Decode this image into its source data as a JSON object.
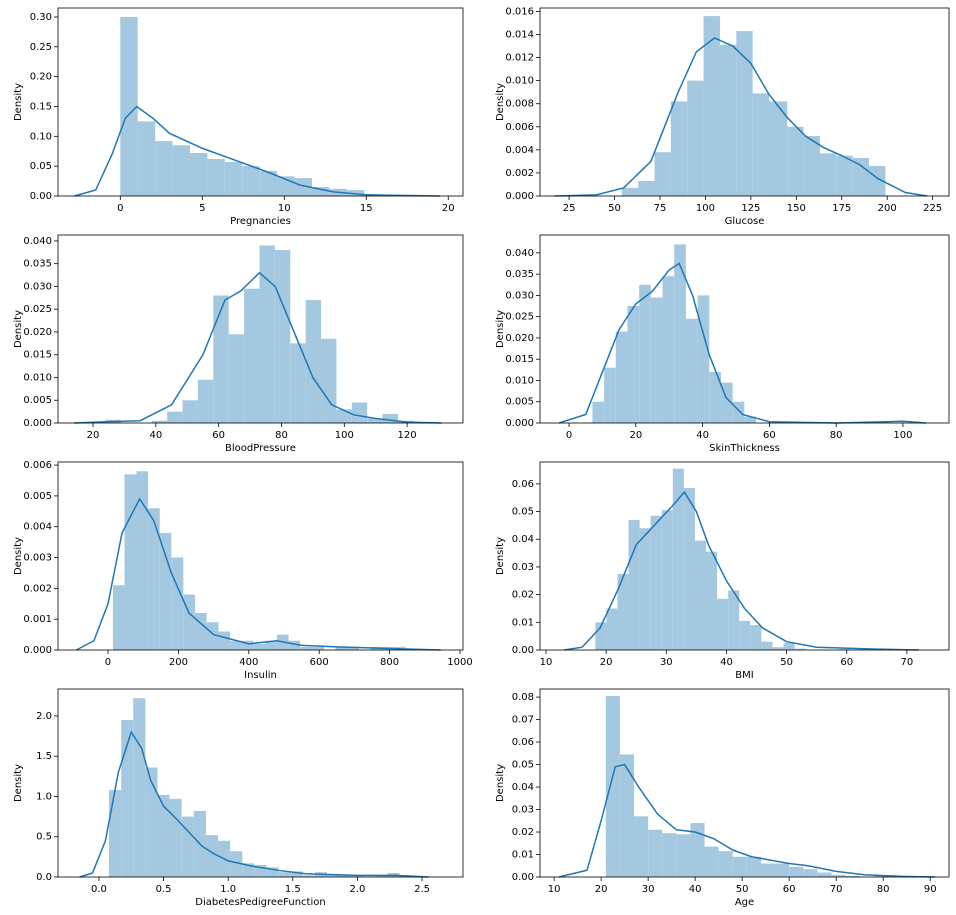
{
  "chart_data": [
    {
      "type": "histogram",
      "xlabel": "Pregnancies",
      "ylabel": "Density",
      "color": "#a5c8e1",
      "bins": [
        0,
        1.0625,
        2.125,
        3.1875,
        4.25,
        5.3125,
        6.375,
        7.4375,
        8.5,
        9.5625,
        10.625,
        11.6875,
        12.75,
        13.8125,
        14.875,
        15.9375,
        17
      ],
      "values": [
        0.3,
        0.125,
        0.092,
        0.085,
        0.072,
        0.062,
        0.057,
        0.05,
        0.042,
        0.033,
        0.03,
        0.015,
        0.012,
        0.01,
        0.002,
        0.002
      ],
      "kde": {
        "color": "#1f77b4",
        "x": [
          -2.8,
          -1.5,
          -0.5,
          0.3,
          1,
          2,
          3,
          5,
          7,
          9,
          11,
          13,
          15,
          17,
          19.5
        ],
        "y": [
          0,
          0.01,
          0.07,
          0.13,
          0.15,
          0.13,
          0.105,
          0.08,
          0.06,
          0.04,
          0.018,
          0.007,
          0.002,
          0.001,
          0
        ]
      },
      "xlim": [
        -3.8,
        20.9
      ],
      "ylim": [
        0,
        0.315
      ],
      "xticks": [
        0,
        5,
        10,
        15,
        20
      ],
      "yticks": [
        {
          "value": 0,
          "label": "0.00"
        },
        0.05,
        {
          "value": 0.1,
          "label": "0.10"
        },
        0.15,
        {
          "value": 0.2,
          "label": "0.20"
        },
        0.25,
        {
          "value": 0.3,
          "label": "0.30"
        }
      ]
    },
    {
      "type": "histogram",
      "xlabel": "Glucose",
      "ylabel": "Density",
      "color": "#a5c8e1",
      "bins": [
        54,
        63,
        72,
        81,
        90,
        99,
        108,
        117,
        126,
        135,
        145,
        154,
        163,
        172,
        181,
        190,
        199
      ],
      "values": [
        0.0007,
        0.0013,
        0.0038,
        0.0082,
        0.01,
        0.0156,
        0.0131,
        0.0143,
        0.0089,
        0.0082,
        0.006,
        0.0052,
        0.0037,
        0.0035,
        0.0033,
        0.0026
      ],
      "kde": {
        "color": "#1f77b4",
        "x": [
          17,
          40,
          55,
          70,
          85,
          95,
          105,
          115,
          125,
          135,
          145,
          155,
          165,
          175,
          185,
          195,
          210,
          222
        ],
        "y": [
          0,
          0.0001,
          0.0007,
          0.003,
          0.009,
          0.0125,
          0.0137,
          0.013,
          0.0115,
          0.0088,
          0.0068,
          0.0052,
          0.0042,
          0.0035,
          0.0027,
          0.0015,
          0.0003,
          0
        ]
      },
      "xlim": [
        9,
        234
      ],
      "ylim": [
        0,
        0.0163
      ],
      "xticks": [
        25,
        50,
        75,
        100,
        125,
        150,
        175,
        200,
        225
      ],
      "yticks": [
        {
          "value": 0,
          "label": "0.000"
        },
        0.002,
        0.004,
        0.006,
        0.008,
        {
          "value": 0.01,
          "label": "0.010"
        },
        0.012,
        0.014,
        0.016
      ]
    },
    {
      "type": "histogram",
      "xlabel": "BloodPressure",
      "ylabel": "Density",
      "color": "#a5c8e1",
      "bins": [
        24,
        28.9,
        33.8,
        38.7,
        43.6,
        48.5,
        53.4,
        58.3,
        63.2,
        68.1,
        73,
        77.9,
        82.8,
        87.7,
        92.6,
        97.5,
        102.4,
        107.3,
        112.2,
        117.1,
        122
      ],
      "values": [
        0.0007,
        0,
        0,
        0.0005,
        0.0025,
        0.005,
        0.0095,
        0.028,
        0.0195,
        0.0295,
        0.039,
        0.038,
        0.0175,
        0.027,
        0.0185,
        0.003,
        0.0045,
        0.001,
        0.002,
        0.0005
      ],
      "kde": {
        "color": "#1f77b4",
        "x": [
          14,
          25,
          35,
          45,
          55,
          62,
          67,
          73,
          78,
          84,
          90,
          96,
          103,
          110,
          120,
          131
        ],
        "y": [
          0,
          0.0003,
          0.0005,
          0.004,
          0.015,
          0.027,
          0.029,
          0.033,
          0.03,
          0.02,
          0.01,
          0.004,
          0.0018,
          0.001,
          0.0002,
          0
        ]
      },
      "xlim": [
        8.85,
        137.8
      ],
      "ylim": [
        0,
        0.0413
      ],
      "xticks": [
        20,
        40,
        60,
        80,
        100,
        120
      ],
      "yticks": [
        {
          "value": 0,
          "label": "0.000"
        },
        0.005,
        {
          "value": 0.01,
          "label": "0.010"
        },
        0.015,
        {
          "value": 0.02,
          "label": "0.020"
        },
        0.025,
        {
          "value": 0.03,
          "label": "0.030"
        },
        0.035,
        {
          "value": 0.04,
          "label": "0.040"
        }
      ]
    },
    {
      "type": "histogram",
      "xlabel": "SkinThickness",
      "ylabel": "Density",
      "color": "#a5c8e1",
      "bins": [
        7,
        10.5,
        14,
        17.5,
        21,
        24.5,
        28,
        31.5,
        35,
        38.5,
        42,
        45.5,
        49,
        52.5,
        56
      ],
      "values": [
        0.005,
        0.013,
        0.0215,
        0.0275,
        0.0325,
        0.0295,
        0.0345,
        0.042,
        0.0245,
        0.03,
        0.012,
        0.0095,
        0.005,
        0.0015
      ],
      "kde": {
        "color": "#1f77b4",
        "x": [
          -3,
          5,
          10,
          15,
          20,
          25,
          30,
          33,
          37,
          42,
          47,
          52,
          60,
          80,
          100,
          107
        ],
        "y": [
          0,
          0.002,
          0.012,
          0.022,
          0.028,
          0.031,
          0.036,
          0.0375,
          0.03,
          0.016,
          0.006,
          0.002,
          0.0003,
          0,
          0.0004,
          0
        ]
      },
      "xlim": [
        -8.7,
        113.8
      ],
      "ylim": [
        0,
        0.0442
      ],
      "xticks": [
        0,
        20,
        40,
        60,
        80,
        100
      ],
      "yticks": [
        {
          "value": 0,
          "label": "0.000"
        },
        0.005,
        {
          "value": 0.01,
          "label": "0.010"
        },
        0.015,
        {
          "value": 0.02,
          "label": "0.020"
        },
        0.025,
        {
          "value": 0.03,
          "label": "0.030"
        },
        0.035,
        {
          "value": 0.04,
          "label": "0.040"
        }
      ]
    },
    {
      "type": "histogram",
      "xlabel": "Insulin",
      "ylabel": "Density",
      "color": "#a5c8e1",
      "bins": [
        14,
        47,
        81,
        114,
        147,
        180,
        214,
        247,
        280,
        314,
        347,
        380,
        413,
        447,
        480,
        513,
        546,
        580,
        613,
        646,
        679,
        713,
        746,
        779,
        812,
        846
      ],
      "values": [
        0.0021,
        0.0057,
        0.0058,
        0.0046,
        0.0038,
        0.003,
        0.0018,
        0.0012,
        0.0009,
        0.0006,
        0.0003,
        0.0003,
        0.0002,
        0.0003,
        0.0005,
        0.0003,
        0.0001,
        0.0001,
        0,
        0.0001,
        0.0001,
        0,
        0.0001,
        0.0001,
        0.0001
      ],
      "kde": {
        "color": "#1f77b4",
        "x": [
          -90,
          -40,
          0,
          40,
          90,
          130,
          180,
          230,
          300,
          400,
          480,
          550,
          650,
          800,
          945
        ],
        "y": [
          0,
          0.0003,
          0.0015,
          0.0038,
          0.0049,
          0.0042,
          0.0025,
          0.0012,
          0.0005,
          0.0002,
          0.0003,
          0.00015,
          0.0001,
          5e-05,
          0
        ]
      },
      "xlim": [
        -142,
        1008.5
      ],
      "ylim": [
        0,
        0.0061
      ],
      "xticks": [
        0,
        200,
        400,
        600,
        800,
        1000
      ],
      "yticks": [
        {
          "value": 0,
          "label": "0.000"
        },
        0.001,
        0.002,
        0.003,
        0.004,
        0.005,
        0.006
      ]
    },
    {
      "type": "histogram",
      "xlabel": "BMI",
      "ylabel": "Density",
      "color": "#a5c8e1",
      "bins": [
        18.2,
        20.04,
        21.88,
        23.72,
        25.56,
        27.4,
        29.24,
        31.08,
        32.92,
        34.76,
        36.6,
        38.44,
        40.28,
        42.12,
        43.96,
        45.8,
        47.64,
        49.48,
        51.32,
        53.16,
        55,
        56.84,
        58.68,
        60.52,
        62.36,
        64.2,
        66.04,
        67.88
      ],
      "values": [
        0.01,
        0.015,
        0.0275,
        0.047,
        0.044,
        0.0485,
        0.0505,
        0.0655,
        0.0585,
        0.0395,
        0.0355,
        0.0185,
        0.0215,
        0.0105,
        0.009,
        0.003,
        0.001,
        0.0025,
        0.0005,
        0,
        0,
        0,
        0.0003,
        0,
        0,
        0,
        0.0003
      ],
      "kde": {
        "color": "#1f77b4",
        "x": [
          13,
          16,
          19,
          22,
          25,
          28,
          31,
          33,
          35,
          37,
          40,
          43,
          46,
          50,
          55,
          65,
          72
        ],
        "y": [
          0,
          0.001,
          0.008,
          0.022,
          0.038,
          0.045,
          0.052,
          0.057,
          0.05,
          0.038,
          0.025,
          0.015,
          0.008,
          0.003,
          0.001,
          0.0003,
          0
        ]
      },
      "xlim": [
        9,
        77
      ],
      "ylim": [
        0,
        0.0679
      ],
      "xticks": [
        10,
        20,
        30,
        40,
        50,
        60,
        70
      ],
      "yticks": [
        {
          "value": 0,
          "label": "0.00"
        },
        0.01,
        0.02,
        0.03,
        0.04,
        0.05,
        0.06
      ]
    },
    {
      "type": "histogram",
      "xlabel": "DiabetesPedigreeFunction",
      "ylabel": "Density",
      "color": "#a5c8e1",
      "bins": [
        0.078,
        0.172,
        0.265,
        0.359,
        0.453,
        0.546,
        0.64,
        0.734,
        0.828,
        0.921,
        1.015,
        1.109,
        1.202,
        1.296,
        1.39,
        1.483,
        1.577,
        1.671,
        1.765,
        1.858,
        1.952,
        2.046,
        2.139,
        2.233,
        2.327,
        2.42
      ],
      "values": [
        1.08,
        1.95,
        2.22,
        1.36,
        1.02,
        0.97,
        0.75,
        0.82,
        0.52,
        0.45,
        0.32,
        0.17,
        0.15,
        0.12,
        0.06,
        0.07,
        0.02,
        0.06,
        0.04,
        0.02,
        0.02,
        0,
        0.02,
        0.05,
        0.02
      ],
      "kde": {
        "color": "#1f77b4",
        "x": [
          -0.15,
          -0.05,
          0.05,
          0.15,
          0.25,
          0.33,
          0.4,
          0.5,
          0.6,
          0.7,
          0.8,
          0.9,
          1.0,
          1.2,
          1.4,
          1.6,
          1.8,
          2.0,
          2.3,
          2.55
        ],
        "y": [
          0,
          0.05,
          0.45,
          1.3,
          1.8,
          1.6,
          1.2,
          0.88,
          0.72,
          0.55,
          0.38,
          0.28,
          0.2,
          0.13,
          0.08,
          0.04,
          0.03,
          0.02,
          0.02,
          0
        ]
      },
      "xlim": [
        -0.317,
        2.817
      ],
      "ylim": [
        0,
        2.335
      ],
      "xticks": [
        {
          "value": 0,
          "label": "0.0"
        },
        0.5,
        {
          "value": 1,
          "label": "1.0"
        },
        1.5,
        {
          "value": 2,
          "label": "2.0"
        },
        2.5
      ],
      "yticks": [
        {
          "value": 0,
          "label": "0.0"
        },
        0.5,
        {
          "value": 1,
          "label": "1.0"
        },
        1.5,
        {
          "value": 2,
          "label": "2.0"
        }
      ]
    },
    {
      "type": "histogram",
      "xlabel": "Age",
      "ylabel": "Density",
      "color": "#a5c8e1",
      "bins": [
        21,
        24,
        27,
        30,
        33,
        36,
        39,
        42,
        45,
        48,
        51,
        54,
        57,
        60,
        63,
        66,
        69,
        72,
        75,
        78,
        81
      ],
      "values": [
        0.0805,
        0.0545,
        0.027,
        0.021,
        0.0195,
        0.019,
        0.024,
        0.0135,
        0.0115,
        0.009,
        0.009,
        0.006,
        0.006,
        0.0045,
        0.0035,
        0.002,
        0.001,
        0.0005,
        0,
        0.0005
      ],
      "kde": {
        "color": "#1f77b4",
        "x": [
          11,
          17,
          20,
          23,
          25,
          28,
          32,
          36,
          40,
          44,
          48,
          52,
          56,
          60,
          64,
          70,
          76,
          84,
          91
        ],
        "y": [
          0,
          0.003,
          0.025,
          0.049,
          0.05,
          0.04,
          0.028,
          0.021,
          0.02,
          0.017,
          0.012,
          0.009,
          0.0075,
          0.006,
          0.005,
          0.0025,
          0.001,
          0.0003,
          0
        ]
      },
      "xlim": [
        7,
        94
      ],
      "ylim": [
        0,
        0.0836
      ],
      "xticks": [
        10,
        20,
        30,
        40,
        50,
        60,
        70,
        80,
        90
      ],
      "yticks": [
        {
          "value": 0,
          "label": "0.00"
        },
        0.01,
        0.02,
        0.03,
        0.04,
        0.05,
        0.06,
        0.07,
        0.08
      ]
    }
  ]
}
